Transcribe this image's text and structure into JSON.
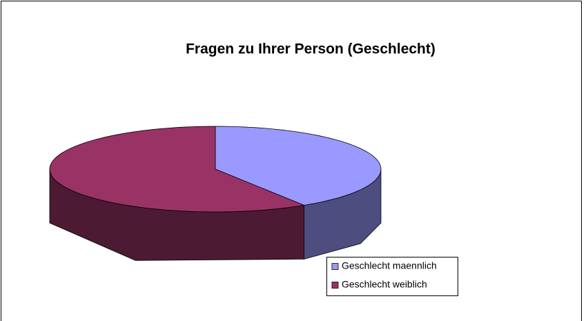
{
  "chart_data": {
    "type": "pie3d",
    "title": "Fragen zu Ihrer Person (Geschlecht)",
    "categories": [
      "Geschlecht maennlich",
      "Geschlecht weiblich"
    ],
    "values": [
      41,
      59
    ],
    "colors": [
      "#9999ff",
      "#993366"
    ]
  }
}
